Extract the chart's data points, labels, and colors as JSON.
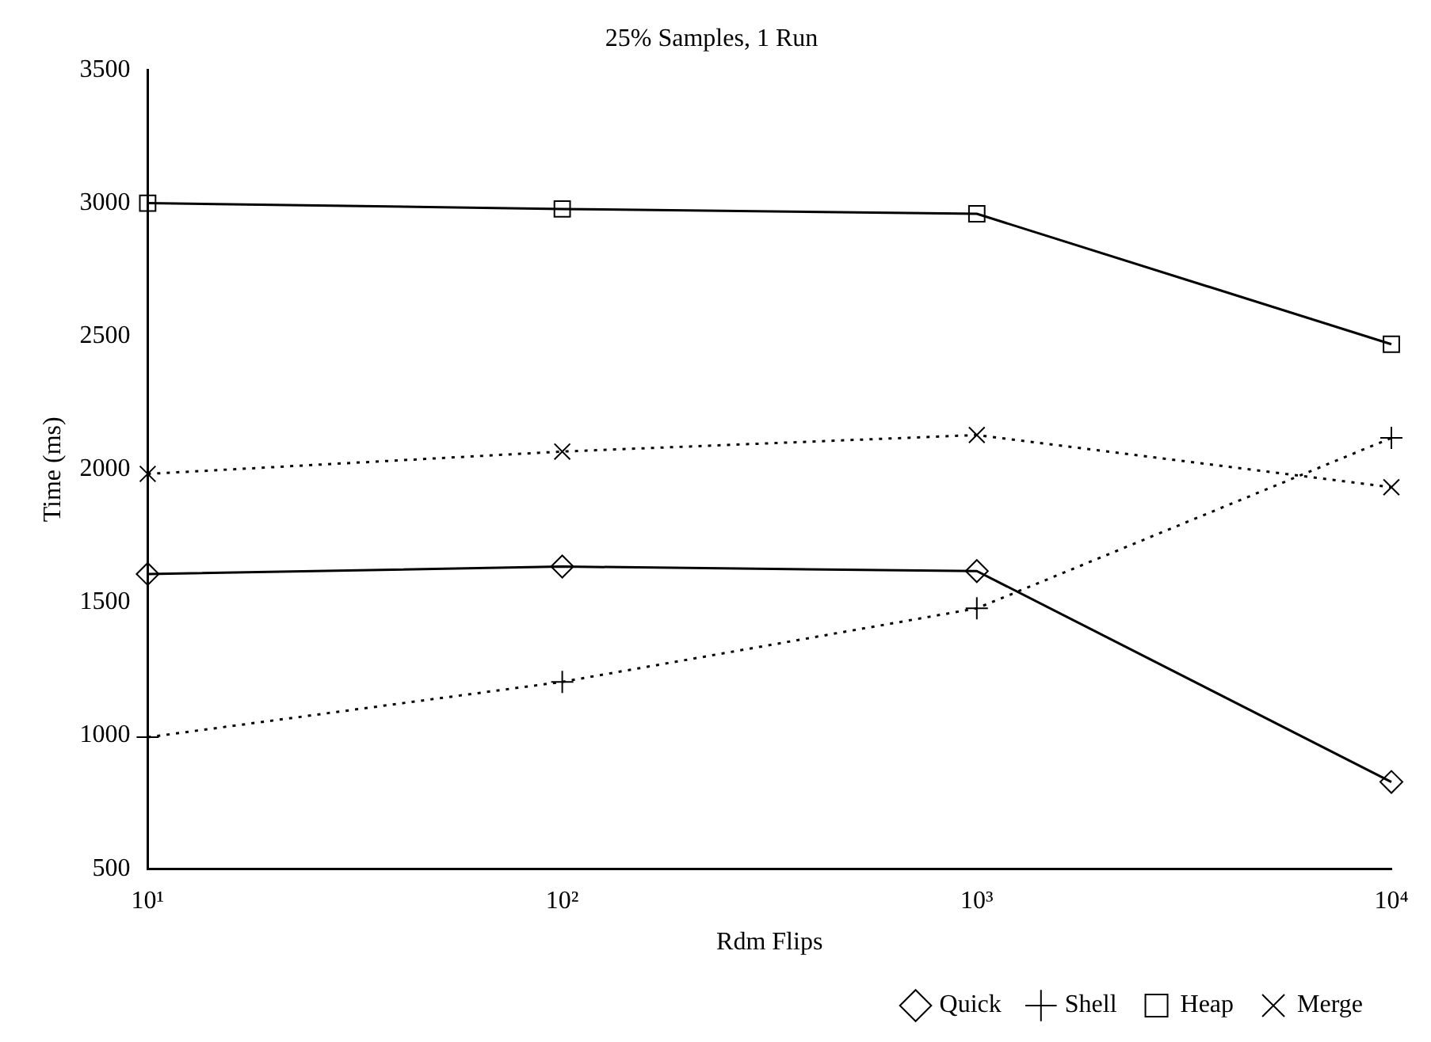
{
  "chart_data": {
    "type": "line",
    "title": "25% Samples, 1 Run",
    "xlabel": "Rdm Flips",
    "ylabel": "Time (ms)",
    "x": [
      10,
      100,
      1000,
      10000
    ],
    "series": [
      {
        "name": "Quick",
        "color": "#000000",
        "values": [
          1607,
          1635,
          1618,
          826
        ],
        "marker": "diamond",
        "line_style": "solid"
      },
      {
        "name": "Shell",
        "color": "#000000",
        "values": [
          994,
          1202,
          1478,
          2118
        ],
        "marker": "cross",
        "line_style": "dotted"
      },
      {
        "name": "Heap",
        "color": "#000000",
        "values": [
          3000,
          2978,
          2960,
          2470
        ],
        "marker": "square",
        "line_style": "solid"
      },
      {
        "name": "Merge",
        "color": "#000000",
        "values": [
          1983,
          2067,
          2129,
          1933
        ],
        "marker": "x",
        "line_style": "dotted"
      }
    ],
    "log": "x",
    "xlim": [
      10,
      10000
    ],
    "xticks": [
      {
        "value": 10,
        "label": "10¹"
      },
      {
        "value": 100,
        "label": "10²"
      },
      {
        "value": 1000,
        "label": "10³"
      },
      {
        "value": 10000,
        "label": "10⁴"
      }
    ],
    "ylim": [
      500,
      3500
    ],
    "yticks": [
      500,
      1000,
      1500,
      2000,
      2500,
      3000,
      3500
    ],
    "grid": false,
    "legend": "bottom right"
  }
}
